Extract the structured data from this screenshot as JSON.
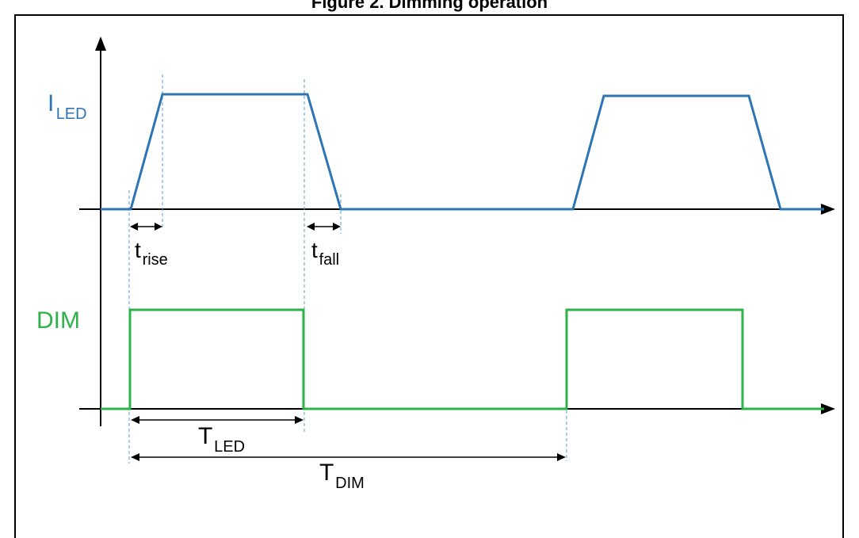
{
  "figure": {
    "title": "Figure 2. Dimming operation"
  },
  "colors": {
    "iled_wave": "#2e75b6",
    "dim_wave": "#2db24a",
    "guide_lines": "#5b9bd5",
    "axes": "#000000"
  },
  "labels": {
    "iled": {
      "main": "I",
      "sub": "LED"
    },
    "dim": "DIM",
    "t_rise": {
      "main": "t",
      "sub": "rise"
    },
    "t_fall": {
      "main": "t",
      "sub": "fall"
    },
    "T_led": {
      "main": "T",
      "sub": "LED"
    },
    "T_dim": {
      "main": "T",
      "sub": "DIM"
    }
  }
}
